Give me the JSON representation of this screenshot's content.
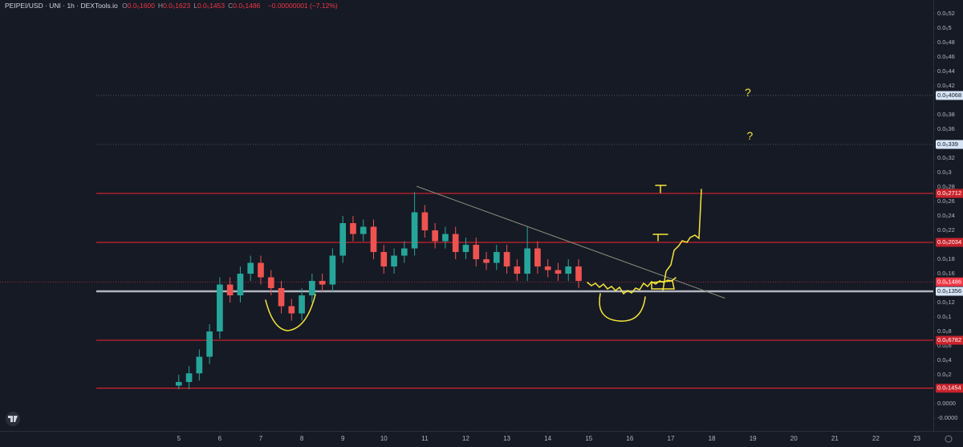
{
  "chart_data": {
    "type": "candlestick",
    "title": "PEIPEI/USD · UNI · 1h · DEXTools.io",
    "ohlc": [
      {
        "key": "O",
        "value": "0.0₅1600"
      },
      {
        "key": "H",
        "value": "0.0₅1623"
      },
      {
        "key": "L",
        "value": "0.0₅1453"
      },
      {
        "key": "C",
        "value": "0.0₅1486"
      }
    ],
    "change": "−0.00000001 (−7.12%)",
    "up_color": "#26a69a",
    "down_color": "#ef5350",
    "x": [
      5.0,
      5.25,
      5.5,
      5.75,
      6.0,
      6.25,
      6.5,
      6.75,
      7.0,
      7.25,
      7.5,
      7.75,
      8.0,
      8.25,
      8.5,
      8.75,
      9.0,
      9.25,
      9.5,
      9.75,
      10.0,
      10.25,
      10.5,
      10.75,
      11.0,
      11.25,
      11.5,
      11.75,
      12.0,
      12.25,
      12.5,
      12.75,
      13.0,
      13.25,
      13.5,
      13.75,
      14.0,
      14.25,
      14.5,
      14.75
    ],
    "open": [
      5e-08,
      1e-07,
      2.2e-07,
      4.5e-07,
      8e-07,
      1.45e-06,
      1.3e-06,
      1.6e-06,
      1.75e-06,
      1.55e-06,
      1.4e-06,
      1.15e-06,
      1.05e-06,
      1.3e-06,
      1.5e-06,
      1.45e-06,
      1.85e-06,
      2.3e-06,
      2.15e-06,
      2.25e-06,
      1.9e-06,
      1.7e-06,
      1.85e-06,
      1.95e-06,
      2.45e-06,
      2.2e-06,
      2.05e-06,
      2.15e-06,
      1.9e-06,
      2e-06,
      1.8e-06,
      1.75e-06,
      1.9e-06,
      1.7e-06,
      1.6e-06,
      1.95e-06,
      1.7e-06,
      1.65e-06,
      1.6e-06,
      1.7e-06
    ],
    "high": [
      2e-07,
      3.2e-07,
      5.5e-07,
      9e-07,
      1.55e-06,
      1.55e-06,
      1.7e-06,
      1.85e-06,
      1.85e-06,
      1.65e-06,
      1.5e-06,
      1.25e-06,
      1.4e-06,
      1.6e-06,
      1.6e-06,
      1.95e-06,
      2.4e-06,
      2.4e-06,
      2.35e-06,
      2.35e-06,
      2e-06,
      1.95e-06,
      2.05e-06,
      2.73e-06,
      2.55e-06,
      2.3e-06,
      2.25e-06,
      2.25e-06,
      2.1e-06,
      2.1e-06,
      1.9e-06,
      2e-06,
      2e-06,
      1.8e-06,
      2.25e-06,
      2.05e-06,
      1.8e-06,
      1.75e-06,
      1.8e-06,
      1.8e-06
    ],
    "low": [
      0.0,
      0.0,
      1.2e-07,
      3.5e-07,
      7e-07,
      1.2e-06,
      1.2e-06,
      1.5e-06,
      1.45e-06,
      1.3e-06,
      1.05e-06,
      9.5e-07,
      9.5e-07,
      1.2e-06,
      1.35e-06,
      1.35e-06,
      1.75e-06,
      2.05e-06,
      2.05e-06,
      1.8e-06,
      1.6e-06,
      1.6e-06,
      1.75e-06,
      1.85e-06,
      2.1e-06,
      1.95e-06,
      1.95e-06,
      1.8e-06,
      1.8e-06,
      1.7e-06,
      1.65e-06,
      1.65e-06,
      1.6e-06,
      1.5e-06,
      1.5e-06,
      1.6e-06,
      1.55e-06,
      1.5e-06,
      1.5e-06,
      1.4e-06
    ],
    "close": [
      1e-07,
      2.2e-07,
      4.5e-07,
      8e-07,
      1.45e-06,
      1.3e-06,
      1.6e-06,
      1.75e-06,
      1.55e-06,
      1.4e-06,
      1.15e-06,
      1.05e-06,
      1.3e-06,
      1.5e-06,
      1.45e-06,
      1.85e-06,
      2.3e-06,
      2.15e-06,
      2.25e-06,
      1.9e-06,
      1.7e-06,
      1.85e-06,
      1.95e-06,
      2.45e-06,
      2.2e-06,
      2.05e-06,
      2.15e-06,
      1.9e-06,
      2e-06,
      1.8e-06,
      1.75e-06,
      1.9e-06,
      1.7e-06,
      1.6e-06,
      1.95e-06,
      1.7e-06,
      1.65e-06,
      1.6e-06,
      1.7e-06,
      1.5e-06
    ],
    "xlim": [
      0.64,
      23.4
    ],
    "xticks": [
      5,
      6,
      7,
      8,
      9,
      10,
      11,
      12,
      13,
      14,
      15,
      16,
      17,
      18,
      19,
      20,
      21,
      22,
      23
    ],
    "ylim": [
      -5e-07,
      5.39e-06
    ],
    "yticks": [
      {
        "value": -4e-07,
        "label": "-0.0000"
      },
      {
        "value": -2e-07,
        "label": "0.0000"
      },
      {
        "value": 2e-07,
        "label": "0.0₆2"
      },
      {
        "value": 4e-07,
        "label": "0.0₆4"
      },
      {
        "value": 6e-07,
        "label": "0.0₆6"
      },
      {
        "value": 8e-07,
        "label": "0.0₆8"
      },
      {
        "value": 1e-06,
        "label": "0.0₅1"
      },
      {
        "value": 1.2e-06,
        "label": "0.0₅12"
      },
      {
        "value": 1.6e-06,
        "label": "0.0₅16"
      },
      {
        "value": 1.8e-06,
        "label": "0.0₅18"
      },
      {
        "value": 2.2e-06,
        "label": "0.0₅22"
      },
      {
        "value": 2.4e-06,
        "label": "0.0₅24"
      },
      {
        "value": 2.6e-06,
        "label": "0.0₅26"
      },
      {
        "value": 2.8e-06,
        "label": "0.0₅28"
      },
      {
        "value": 3e-06,
        "label": "0.0₅3"
      },
      {
        "value": 3.2e-06,
        "label": "0.0₅32"
      },
      {
        "value": 3.6e-06,
        "label": "0.0₅36"
      },
      {
        "value": 3.8e-06,
        "label": "0.0₅38"
      },
      {
        "value": 4.2e-06,
        "label": "0.0₅42"
      },
      {
        "value": 4.4e-06,
        "label": "0.0₅44"
      },
      {
        "value": 4.6e-06,
        "label": "0.0₅46"
      },
      {
        "value": 4.8e-06,
        "label": "0.0₅48"
      },
      {
        "value": 5e-06,
        "label": "0.0₅5"
      },
      {
        "value": 5.2e-06,
        "label": "0.0₅52"
      }
    ],
    "levels": [
      {
        "value": 4.068e-06,
        "label": "0.0₅4068",
        "color": "#5d6270",
        "tag": "#d6e4f5"
      },
      {
        "value": 3.39e-06,
        "label": "0.0₅339",
        "color": "#5d6270",
        "tag": "#d6e4f5"
      },
      {
        "value": 2.712e-06,
        "label": "0.0₅2712",
        "color": "#c8232c",
        "tag": "#c8232c"
      },
      {
        "value": 2.034e-06,
        "label": "0.0₅2034",
        "color": "#c8232c",
        "tag": "#c8232c"
      },
      {
        "value": 1.356e-06,
        "label": "0.0₅1356",
        "color": "#b2b5be",
        "tag": "#d6e4f5"
      },
      {
        "value": 6.782e-07,
        "label": "0.0₆6782",
        "color": "#c8232c",
        "tag": "#c8232c"
      },
      {
        "value": 1.454e-08,
        "label": "0.0₇1454",
        "color": "#c8232c",
        "tag": "#c8232c"
      }
    ],
    "last_price": {
      "value": 1.486e-06,
      "label": "0.0₅1486",
      "color": "#f23645"
    },
    "trendline": {
      "x": [
        10.8,
        18.32
      ],
      "y": [
        2.81e-06,
        1.26e-06
      ],
      "color": "#8a8d7a"
    },
    "annotations": [
      {
        "text": "?",
        "x": 18.8,
        "y": 4.1e-06,
        "color": "#f5e63a"
      },
      {
        "text": "?",
        "x": 18.85,
        "y": 3.5e-06,
        "color": "#f5e63a"
      }
    ]
  }
}
